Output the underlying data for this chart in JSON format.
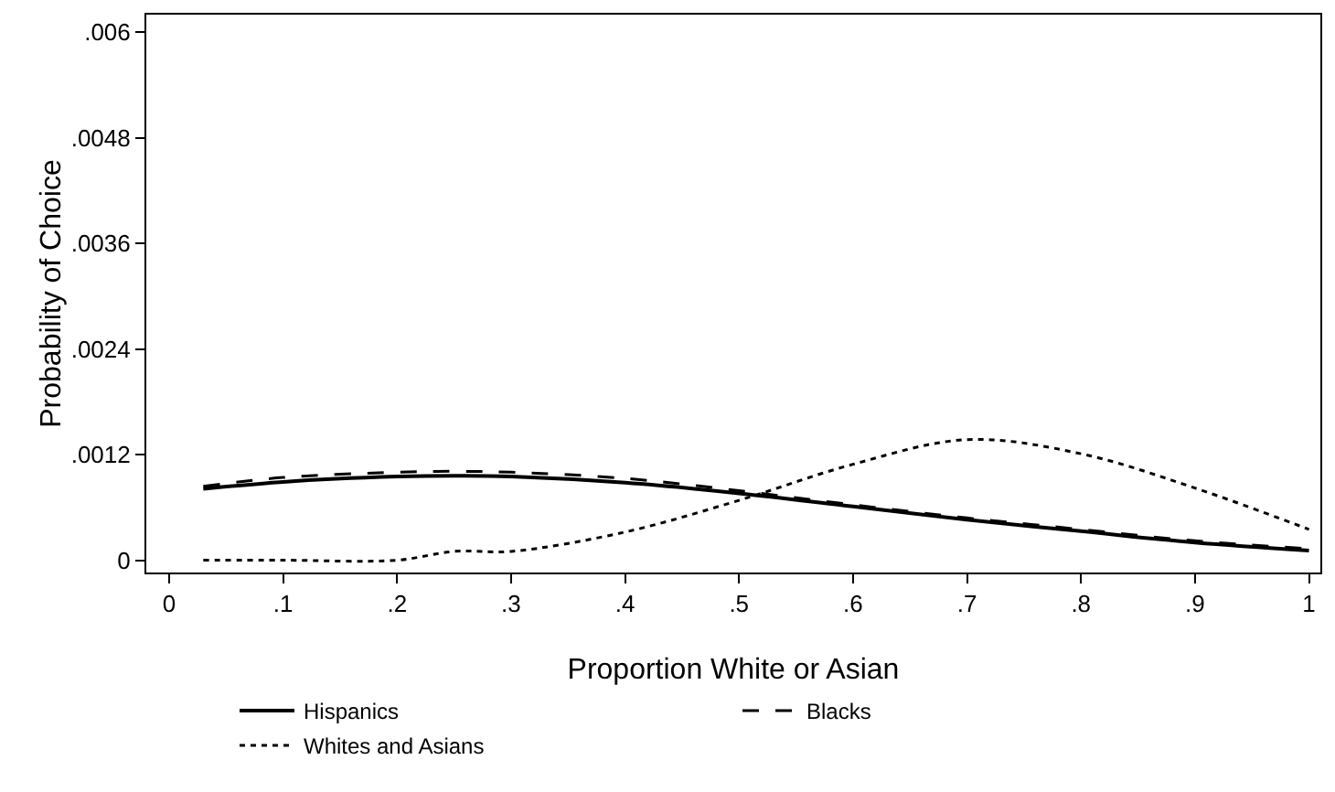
{
  "chart_data": {
    "type": "line",
    "xlabel": "Proportion White or Asian",
    "ylabel": "Probability of Choice",
    "x": [
      0.03,
      0.1,
      0.2,
      0.25,
      0.3,
      0.4,
      0.5,
      0.6,
      0.7,
      0.8,
      0.9,
      1
    ],
    "series": [
      {
        "name": "Hispanics",
        "color": "#000000",
        "line_style": "solid",
        "values": [
          0.00081,
          0.00089,
          0.00095,
          0.00096,
          0.00095,
          0.00088,
          0.00076,
          0.00061,
          0.00046,
          0.00033,
          0.0002,
          0.00011
        ]
      },
      {
        "name": "Blacks",
        "color": "#000000",
        "line_style": "dashed",
        "values": [
          0.00084,
          0.00094,
          0.001,
          0.00101,
          0.001,
          0.00093,
          0.00079,
          0.00063,
          0.00048,
          0.00035,
          0.00022,
          0.00013
        ]
      },
      {
        "name": "Whites and Asians",
        "color": "#000000",
        "line_style": "dotted",
        "values": [
          0,
          0,
          0,
          0.0001,
          0.0001,
          0.00032,
          0.00068,
          0.00109,
          0.00137,
          0.00121,
          0.00082,
          0.00035
        ]
      }
    ],
    "xlim": [
      -0.02,
      1.01
    ],
    "xticks": [
      {
        "value": 0,
        "label": "0"
      },
      {
        "value": 0.1,
        "label": ".1"
      },
      {
        "value": 0.2,
        "label": ".2"
      },
      {
        "value": 0.3,
        "label": ".3"
      },
      {
        "value": 0.4,
        "label": ".4"
      },
      {
        "value": 0.5,
        "label": ".5"
      },
      {
        "value": 0.6,
        "label": ".6"
      },
      {
        "value": 0.7,
        "label": ".7"
      },
      {
        "value": 0.8,
        "label": ".8"
      },
      {
        "value": 0.9,
        "label": ".9"
      },
      {
        "value": 1,
        "label": "1"
      }
    ],
    "ylim": [
      -0.00014,
      0.0062
    ],
    "yticks": [
      {
        "value": 0,
        "label": "0"
      },
      {
        "value": 0.0012,
        "label": ".0012"
      },
      {
        "value": 0.0024,
        "label": ".0024"
      },
      {
        "value": 0.0036,
        "label": ".0036"
      },
      {
        "value": 0.0048,
        "label": ".0048"
      },
      {
        "value": 0.006,
        "label": ".006"
      }
    ],
    "grid": false,
    "legend": "bottom",
    "marker": "none"
  }
}
